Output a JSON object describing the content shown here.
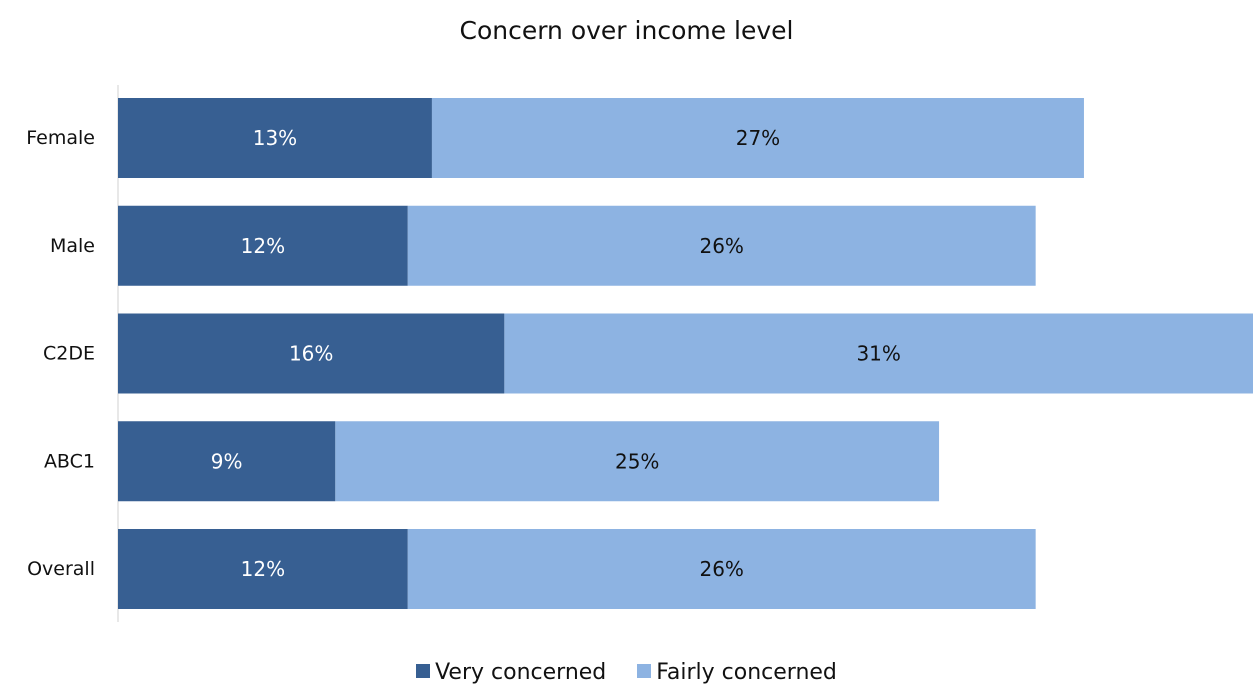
{
  "chart_data": {
    "type": "bar",
    "orientation": "horizontal",
    "stacked": true,
    "title": "Concern over income level",
    "categories": [
      "Female",
      "Male",
      "C2DE",
      "ABC1",
      "Overall"
    ],
    "series": [
      {
        "name": "Very concerned",
        "values": [
          13,
          12,
          16,
          9,
          12
        ],
        "labels": [
          "13%",
          "12%",
          "16%",
          "9%",
          "12%"
        ],
        "color": "#375F92"
      },
      {
        "name": "Fairly concerned",
        "values": [
          27,
          26,
          31,
          25,
          26
        ],
        "labels": [
          "27%",
          "26%",
          "31%",
          "25%",
          "26%"
        ],
        "color": "#8DB3E2"
      }
    ],
    "xlim": [
      0,
      47
    ],
    "grid": false,
    "legend_position": "bottom",
    "label_color_dark": "#ffffff",
    "label_color_light": "#111111"
  }
}
